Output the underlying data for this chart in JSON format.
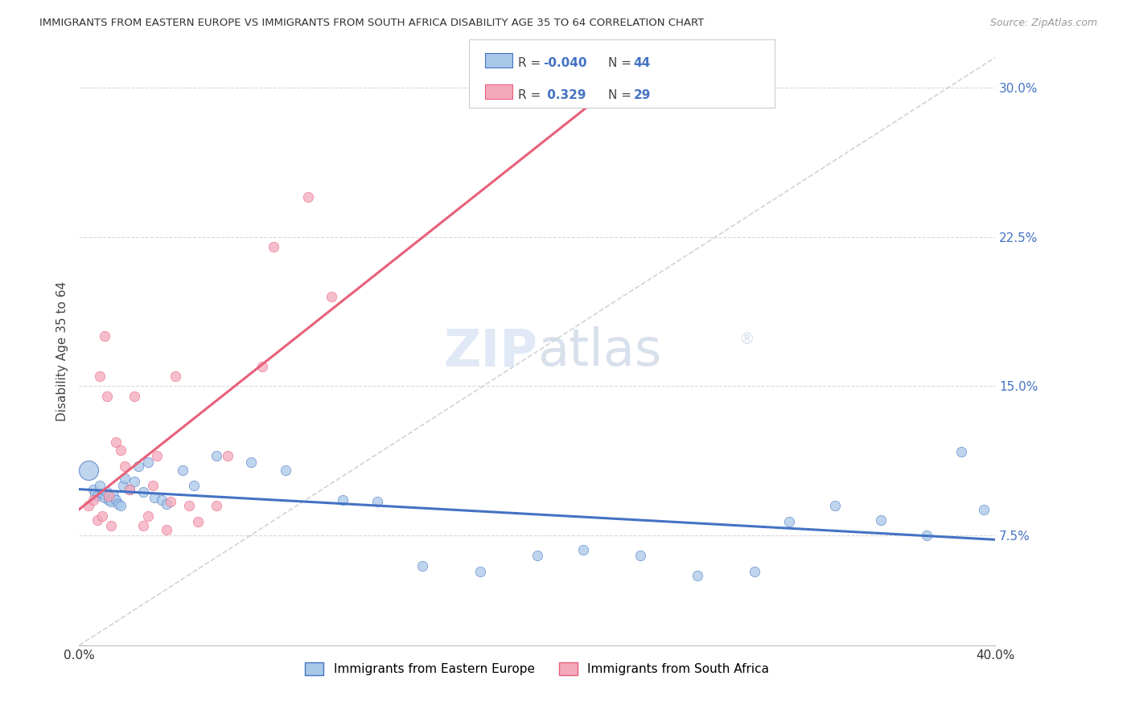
{
  "title": "IMMIGRANTS FROM EASTERN EUROPE VS IMMIGRANTS FROM SOUTH AFRICA DISABILITY AGE 35 TO 64 CORRELATION CHART",
  "source": "Source: ZipAtlas.com",
  "ylabel": "Disability Age 35 to 64",
  "yticks": [
    0.075,
    0.15,
    0.225,
    0.3
  ],
  "ytick_labels": [
    "7.5%",
    "15.0%",
    "22.5%",
    "30.0%"
  ],
  "xmin": 0.0,
  "xmax": 0.4,
  "ymin": 0.02,
  "ymax": 0.315,
  "r_blue": -0.04,
  "n_blue": 44,
  "r_pink": 0.329,
  "n_pink": 29,
  "color_blue": "#a8c8e8",
  "color_pink": "#f4a8bc",
  "color_blue_line": "#4472c4",
  "color_pink_line": "#e8607a",
  "color_diag": "#c8c8c8",
  "background": "#ffffff",
  "grid_color": "#d8d8d8",
  "blue_points_x": [
    0.004,
    0.006,
    0.007,
    0.008,
    0.009,
    0.01,
    0.011,
    0.012,
    0.013,
    0.014,
    0.015,
    0.016,
    0.017,
    0.018,
    0.019,
    0.02,
    0.022,
    0.024,
    0.026,
    0.028,
    0.03,
    0.033,
    0.036,
    0.038,
    0.045,
    0.05,
    0.06,
    0.075,
    0.09,
    0.115,
    0.13,
    0.15,
    0.175,
    0.2,
    0.22,
    0.245,
    0.27,
    0.295,
    0.31,
    0.33,
    0.35,
    0.37,
    0.385,
    0.395
  ],
  "blue_points_y": [
    0.108,
    0.098,
    0.096,
    0.095,
    0.1,
    0.096,
    0.094,
    0.097,
    0.093,
    0.092,
    0.095,
    0.093,
    0.091,
    0.09,
    0.1,
    0.104,
    0.098,
    0.102,
    0.11,
    0.097,
    0.112,
    0.094,
    0.093,
    0.091,
    0.108,
    0.1,
    0.115,
    0.112,
    0.108,
    0.093,
    0.092,
    0.06,
    0.057,
    0.065,
    0.068,
    0.065,
    0.055,
    0.057,
    0.082,
    0.09,
    0.083,
    0.075,
    0.117,
    0.088
  ],
  "blue_points_size": [
    300,
    30,
    30,
    30,
    30,
    30,
    30,
    30,
    30,
    30,
    30,
    30,
    30,
    30,
    30,
    30,
    30,
    30,
    30,
    30,
    30,
    30,
    30,
    30,
    30,
    30,
    30,
    30,
    30,
    30,
    30,
    30,
    30,
    30,
    30,
    30,
    30,
    30,
    30,
    30,
    30,
    30,
    30,
    30
  ],
  "pink_points_x": [
    0.004,
    0.006,
    0.008,
    0.009,
    0.01,
    0.011,
    0.012,
    0.013,
    0.014,
    0.016,
    0.018,
    0.02,
    0.022,
    0.024,
    0.028,
    0.03,
    0.032,
    0.034,
    0.038,
    0.04,
    0.042,
    0.048,
    0.052,
    0.06,
    0.065,
    0.08,
    0.085,
    0.1,
    0.11
  ],
  "pink_points_y": [
    0.09,
    0.093,
    0.083,
    0.155,
    0.085,
    0.175,
    0.145,
    0.095,
    0.08,
    0.122,
    0.118,
    0.11,
    0.098,
    0.145,
    0.08,
    0.085,
    0.1,
    0.115,
    0.078,
    0.092,
    0.155,
    0.09,
    0.082,
    0.09,
    0.115,
    0.16,
    0.22,
    0.245,
    0.195
  ],
  "pink_points_size": [
    30,
    30,
    30,
    30,
    30,
    30,
    30,
    30,
    30,
    30,
    30,
    30,
    30,
    30,
    30,
    30,
    30,
    30,
    30,
    30,
    30,
    30,
    30,
    30,
    30,
    30,
    30,
    30,
    30
  ],
  "watermark_text": "ZIPatlas",
  "watermark_symbol": "®"
}
